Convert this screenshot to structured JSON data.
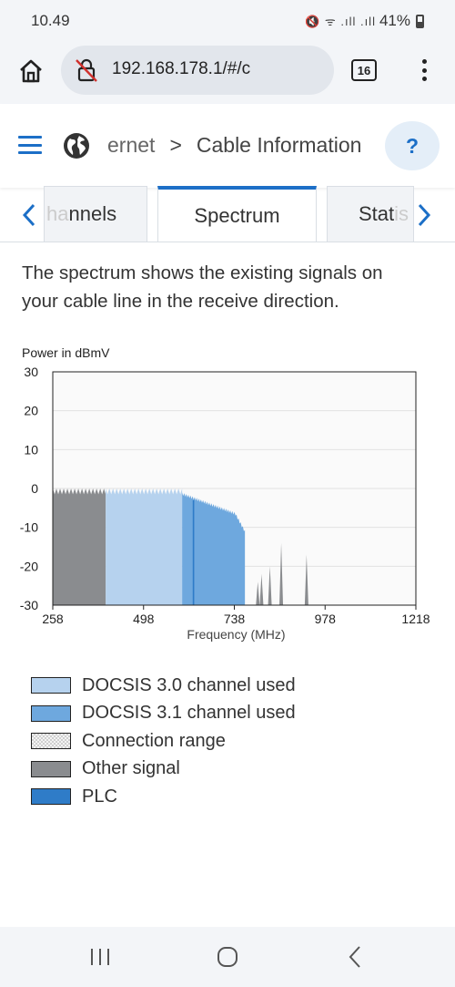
{
  "status_bar": {
    "time": "10.49",
    "battery": "41%"
  },
  "browser": {
    "url": "192.168.178.1/#/c",
    "tab_count": "16"
  },
  "header": {
    "breadcrumb_parent": "ernet",
    "breadcrumb_sep": ">",
    "breadcrumb_current": "Cable Information",
    "help_label": "?"
  },
  "tabs": {
    "prev_partial": "ha",
    "prev": "nnels",
    "active": "Spectrum",
    "next": "Stat",
    "next_partial": "is"
  },
  "description": "The spectrum shows the existing signals on your cable line in the receive direction.",
  "chart_data": {
    "type": "area",
    "ylabel": "Power in dBmV",
    "xlabel": "Frequency (MHz)",
    "ylim": [
      -30,
      30
    ],
    "xlim": [
      258,
      1218
    ],
    "y_ticks": [
      30,
      20,
      10,
      0,
      -10,
      -20,
      -30
    ],
    "y_tick_labels": [
      "30",
      "20",
      "10",
      "0",
      "-10",
      "-20",
      "-30"
    ],
    "x_ticks": [
      258,
      498,
      738,
      978,
      1218
    ],
    "x_tick_labels": [
      "258",
      "498",
      "738",
      "978",
      "1218"
    ],
    "grid": true,
    "series": [
      {
        "name": "Other signal",
        "color": "#8a8c8f",
        "x_range": [
          258,
          398
        ],
        "level": 0
      },
      {
        "name": "DOCSIS 3.0 channel used",
        "color": "#b6d2ee",
        "x_range": [
          398,
          600
        ],
        "level": 0
      },
      {
        "name": "DOCSIS 3.1 channel used",
        "color": "#6ea8de",
        "x_range": [
          600,
          766
        ],
        "level": -3
      },
      {
        "name": "PLC",
        "color": "#2f7cc8",
        "x_range": [
          628,
          632
        ],
        "level": -3
      },
      {
        "name": "Other signal",
        "color": "#8a8c8f",
        "spikes": [
          [
            800,
            -24
          ],
          [
            810,
            -22
          ],
          [
            832,
            -20
          ],
          [
            862,
            -14
          ],
          [
            929,
            -17
          ]
        ]
      }
    ]
  },
  "legend": [
    {
      "label": "DOCSIS 3.0 channel used",
      "color": "#b6d2ee"
    },
    {
      "label": "DOCSIS 3.1 channel used",
      "color": "#6ea8de"
    },
    {
      "label": "Connection range",
      "color": "pattern"
    },
    {
      "label": "Other signal",
      "color": "#8a8c8f"
    },
    {
      "label": "PLC",
      "color": "#2f7cc8"
    }
  ]
}
